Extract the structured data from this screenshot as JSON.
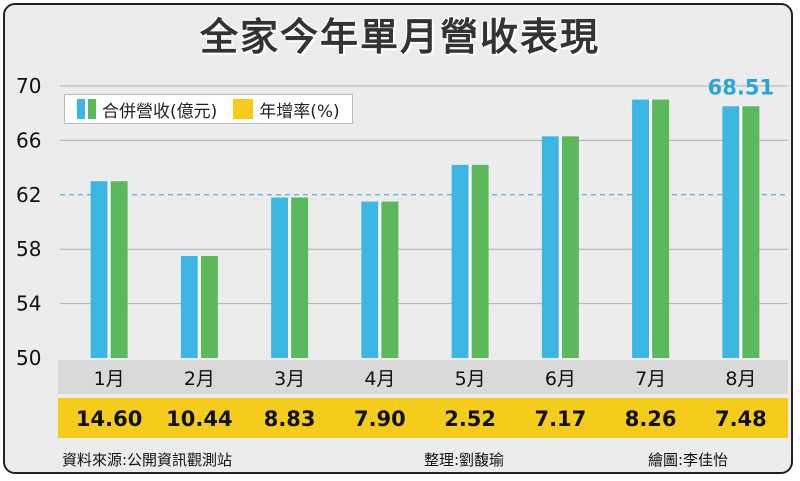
{
  "title": "全家今年單月營收表現",
  "legend": {
    "revenue_label": "合併營收(億元)",
    "growth_label": "年增率(%)"
  },
  "footer": {
    "source": "資料來源:公開資訊觀測站",
    "editor": "整理:劉馥瑜",
    "illustrator": "繪圖:李佳怡"
  },
  "colors": {
    "bar_blue": "#3cb6e3",
    "bar_green": "#5cb85c",
    "growth_band": "#f5cc1c",
    "month_band": "#d9d9d9",
    "highlight_text": "#2aa6dd"
  },
  "chart_data": {
    "type": "bar",
    "categories": [
      "1月",
      "2月",
      "3月",
      "4月",
      "5月",
      "6月",
      "7月",
      "8月"
    ],
    "series": [
      {
        "name": "合併營收(億元)",
        "values": [
          63.0,
          57.5,
          61.8,
          61.5,
          64.2,
          66.3,
          69.0,
          68.51
        ]
      },
      {
        "name": "年增率(%)",
        "values": [
          14.6,
          10.44,
          8.83,
          7.9,
          2.52,
          7.17,
          8.26,
          7.48
        ]
      }
    ],
    "growth_labels": [
      "14.60",
      "10.44",
      "8.83",
      "7.90",
      "2.52",
      "7.17",
      "8.26",
      "7.48"
    ],
    "highlight_label": "68.51",
    "y_ticks": [
      "70",
      "66",
      "62",
      "58",
      "54",
      "50"
    ],
    "y_tick_values": [
      70,
      66,
      62,
      58,
      54,
      50
    ],
    "ylim": [
      50,
      70
    ],
    "reference_line": 62,
    "grid": true
  }
}
